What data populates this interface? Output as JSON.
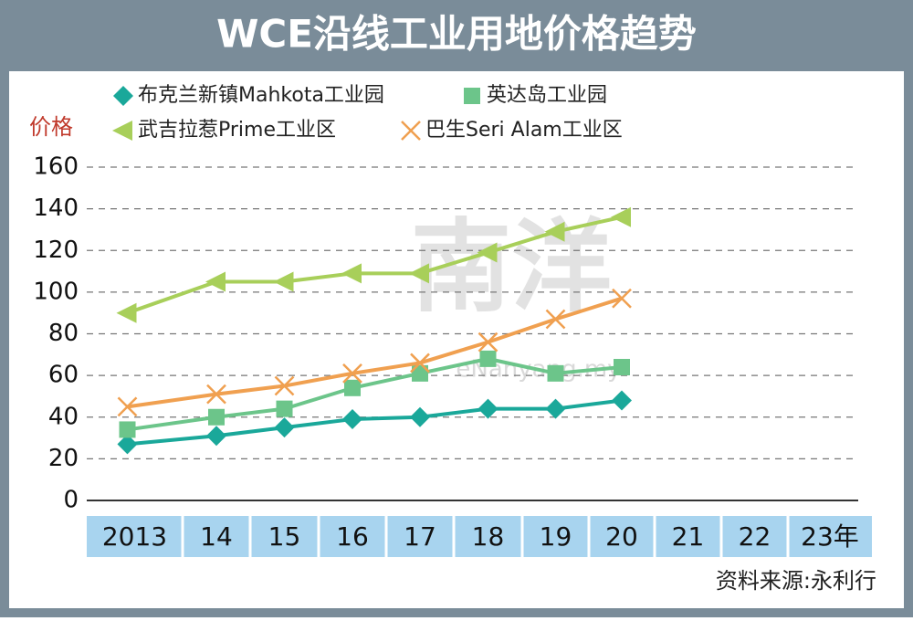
{
  "chart_data": {
    "type": "line",
    "title": "WCE沿线工业用地价格趋势",
    "ylabel": "价格",
    "source": "资料来源:永利行",
    "watermark": [
      "南洋",
      "eNanyang.my"
    ],
    "categories": [
      "2013",
      "14",
      "15",
      "16",
      "17",
      "18",
      "19",
      "20",
      "21",
      "22",
      "23年"
    ],
    "series": [
      {
        "name": "布克兰新镇Mahkota工业园",
        "color": "#1aa89a",
        "marker": "diamond",
        "values": [
          27,
          31,
          35,
          39,
          40,
          44,
          44,
          48,
          null,
          null,
          null
        ]
      },
      {
        "name": "英达岛工业园",
        "color": "#6cc58a",
        "marker": "square",
        "values": [
          34,
          40,
          44,
          54,
          61,
          68,
          61,
          64,
          null,
          null,
          null
        ]
      },
      {
        "name": "武吉拉惹Prime工业区",
        "color": "#a8cf5a",
        "marker": "triangle",
        "values": [
          90,
          105,
          105,
          109,
          109,
          119,
          129,
          136,
          null,
          null,
          null
        ]
      },
      {
        "name": "巴生Seri Alam工业区",
        "color": "#f0a050",
        "marker": "cross",
        "values": [
          45,
          51,
          55,
          61,
          66,
          76,
          87,
          97,
          null,
          null,
          null
        ]
      }
    ],
    "ylim": [
      0,
      160
    ],
    "yticks": [
      0,
      20,
      40,
      60,
      80,
      100,
      120,
      140,
      160
    ],
    "grid": true
  }
}
